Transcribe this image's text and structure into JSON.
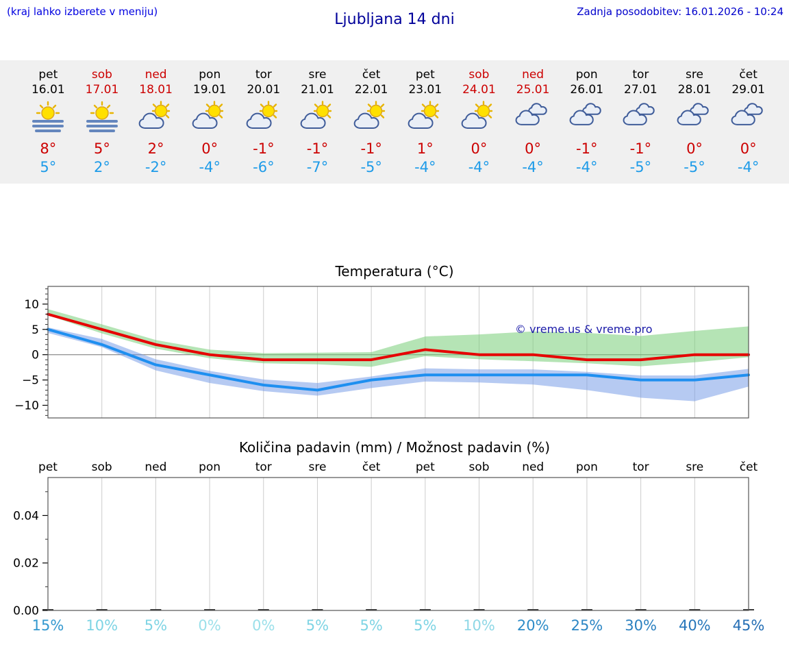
{
  "header": {
    "menu_hint": "(kraj lahko izberete v meniju)",
    "title": "Ljubljana 14 dni",
    "last_update": "Zadnja posodobitev: 16.01.2026 - 10:24"
  },
  "colors": {
    "link_blue": "#0000e0",
    "title_blue": "#00009a",
    "update_blue": "#0000cc",
    "weekend_red": "#cc0000",
    "weekday_black": "#000000",
    "max_temp_red": "#cc0000",
    "min_temp_blue": "#1e9be8",
    "strip_bg": "#f0f0f0",
    "watermark_blue": "#1a1aa8"
  },
  "forecast": {
    "days": [
      {
        "name": "pet",
        "date": "16.01",
        "weekend": false,
        "icon": "sun-fog",
        "max": "8°",
        "min": "5°"
      },
      {
        "name": "sob",
        "date": "17.01",
        "weekend": true,
        "icon": "sun-fog",
        "max": "5°",
        "min": "2°"
      },
      {
        "name": "ned",
        "date": "18.01",
        "weekend": true,
        "icon": "sun-cloud",
        "max": "2°",
        "min": "-2°"
      },
      {
        "name": "pon",
        "date": "19.01",
        "weekend": false,
        "icon": "sun-cloud",
        "max": "0°",
        "min": "-4°"
      },
      {
        "name": "tor",
        "date": "20.01",
        "weekend": false,
        "icon": "sun-cloud",
        "max": "-1°",
        "min": "-6°"
      },
      {
        "name": "sre",
        "date": "21.01",
        "weekend": false,
        "icon": "sun-cloud",
        "max": "-1°",
        "min": "-7°"
      },
      {
        "name": "čet",
        "date": "22.01",
        "weekend": false,
        "icon": "sun-cloud",
        "max": "-1°",
        "min": "-5°"
      },
      {
        "name": "pet",
        "date": "23.01",
        "weekend": false,
        "icon": "sun-cloud",
        "max": "1°",
        "min": "-4°"
      },
      {
        "name": "sob",
        "date": "24.01",
        "weekend": true,
        "icon": "sun-cloud",
        "max": "0°",
        "min": "-4°"
      },
      {
        "name": "ned",
        "date": "25.01",
        "weekend": true,
        "icon": "cloud",
        "max": "0°",
        "min": "-4°"
      },
      {
        "name": "pon",
        "date": "26.01",
        "weekend": false,
        "icon": "cloud",
        "max": "-1°",
        "min": "-4°"
      },
      {
        "name": "tor",
        "date": "27.01",
        "weekend": false,
        "icon": "cloud",
        "max": "-1°",
        "min": "-5°"
      },
      {
        "name": "sre",
        "date": "28.01",
        "weekend": false,
        "icon": "cloud",
        "max": "0°",
        "min": "-5°"
      },
      {
        "name": "čet",
        "date": "29.01",
        "weekend": false,
        "icon": "cloud",
        "max": "0°",
        "min": "-4°"
      }
    ]
  },
  "chart_data": [
    {
      "type": "line",
      "title": "Temperatura (°C)",
      "watermark": "© vreme.us & vreme.pro",
      "categories": [
        "16.01",
        "17.01",
        "18.01",
        "19.01",
        "20.01",
        "21.01",
        "22.01",
        "23.01",
        "24.01",
        "25.01",
        "26.01",
        "27.01",
        "28.01",
        "29.01"
      ],
      "ylim": [
        -12.5,
        13.5
      ],
      "yticks": [
        10,
        5,
        0,
        -5,
        -10
      ],
      "grid": "vertical",
      "series": [
        {
          "name": "max-temp",
          "color": "#e60000",
          "values": [
            8,
            5,
            2,
            0,
            -1,
            -1,
            -1,
            1,
            0,
            0,
            -1,
            -1,
            0,
            0
          ]
        },
        {
          "name": "min-temp",
          "color": "#1e8ff0",
          "values": [
            5,
            2,
            -2,
            -4,
            -6,
            -7,
            -5,
            -4,
            -4,
            -4,
            -4,
            -5,
            -5,
            -4
          ]
        }
      ],
      "bands": [
        {
          "name": "max-temp-range",
          "color": "rgba(120,205,120,0.55)",
          "upper": [
            9,
            6,
            2.9,
            1,
            0.3,
            0.4,
            0.5,
            3.6,
            4,
            4.6,
            4.3,
            3.7,
            4.7,
            5.6
          ],
          "lower": [
            7.8,
            4.2,
            1.2,
            -0.7,
            -1.7,
            -1.9,
            -2.4,
            -0.3,
            -0.9,
            -1.3,
            -1.7,
            -2.3,
            -1.5,
            -0.5
          ]
        },
        {
          "name": "min-temp-range",
          "color": "rgba(110,150,230,0.5)",
          "upper": [
            5.4,
            3.1,
            -0.9,
            -3.2,
            -4.9,
            -5.6,
            -4.3,
            -2.7,
            -2.9,
            -2.9,
            -3.4,
            -4.1,
            -4.1,
            -2.8
          ],
          "lower": [
            4.3,
            1.5,
            -3.1,
            -5.6,
            -7.2,
            -8.1,
            -6.6,
            -5.3,
            -5.5,
            -5.9,
            -7,
            -8.5,
            -9.2,
            -6.3
          ]
        }
      ]
    },
    {
      "type": "bar",
      "title": "Količina padavin (mm) / Možnost padavin (%)",
      "categories": [
        "pet",
        "sob",
        "ned",
        "pon",
        "tor",
        "sre",
        "čet",
        "pet",
        "sob",
        "ned",
        "pon",
        "tor",
        "sre",
        "čet"
      ],
      "ylim": [
        0,
        0.056
      ],
      "yticks": [
        0.0,
        0.02,
        0.04
      ],
      "values": [
        0,
        0,
        0,
        0,
        0,
        0,
        0,
        0,
        0,
        0,
        0,
        0,
        0,
        0
      ],
      "probabilities": [
        {
          "label": "15%",
          "color": "#3398cf"
        },
        {
          "label": "10%",
          "color": "#7ed4e4"
        },
        {
          "label": "5%",
          "color": "#7ed4e4"
        },
        {
          "label": "0%",
          "color": "#9ce0ea"
        },
        {
          "label": "0%",
          "color": "#9ce0ea"
        },
        {
          "label": "5%",
          "color": "#7ed4e4"
        },
        {
          "label": "5%",
          "color": "#7ed4e4"
        },
        {
          "label": "5%",
          "color": "#7ed4e4"
        },
        {
          "label": "10%",
          "color": "#8fd8e6"
        },
        {
          "label": "20%",
          "color": "#2e8cc8"
        },
        {
          "label": "25%",
          "color": "#2c86c4"
        },
        {
          "label": "30%",
          "color": "#2a80c0"
        },
        {
          "label": "40%",
          "color": "#2776ba"
        },
        {
          "label": "45%",
          "color": "#246eb4"
        }
      ]
    }
  ]
}
